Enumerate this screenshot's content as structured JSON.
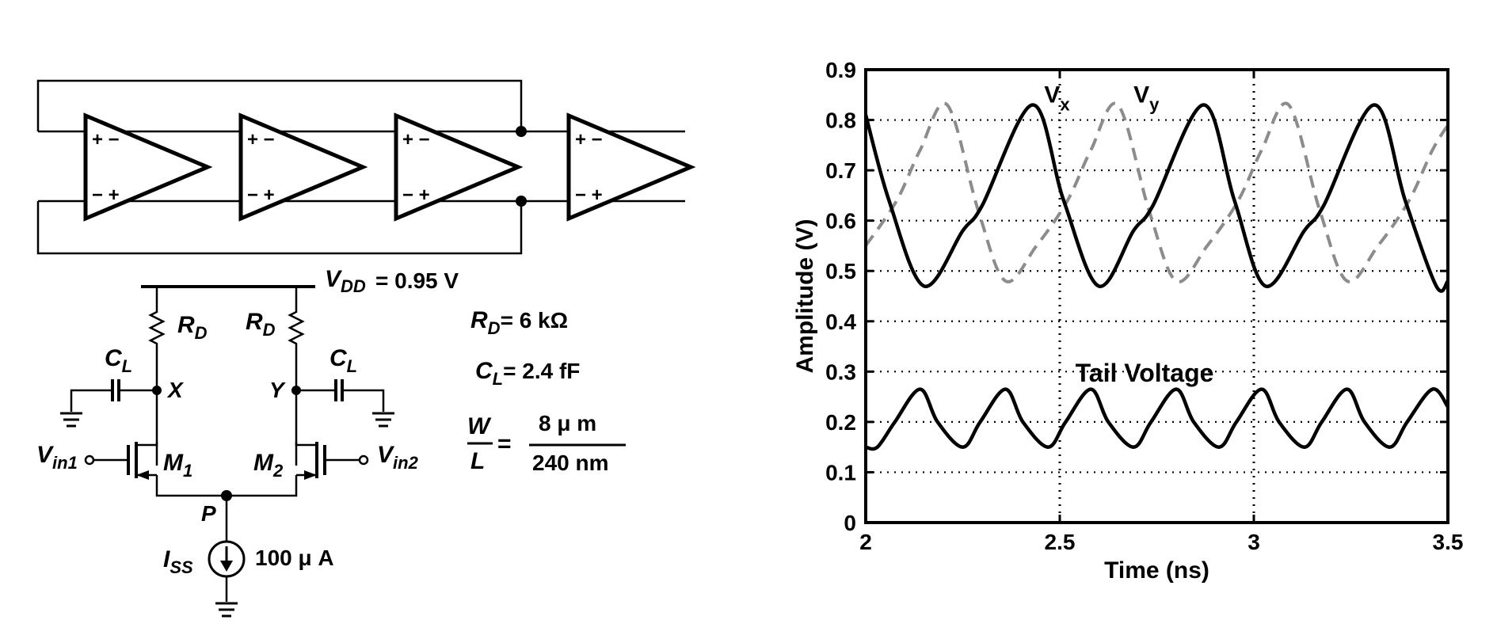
{
  "ring_oscillator": {
    "stage_count": 4,
    "stage_pin_top": "+ −",
    "stage_pin_bottom": "− +"
  },
  "diff_pair": {
    "vdd_symbol": "V",
    "vdd_sub": "DD",
    "vdd_value": "= 0.95 V",
    "rd_symbol": "R",
    "rd_sub": "D",
    "cl_symbol": "C",
    "cl_sub": "L",
    "node_x": "X",
    "node_y": "Y",
    "node_p": "P",
    "m1_symbol": "M",
    "m1_sub": "1",
    "m2_symbol": "M",
    "m2_sub": "2",
    "vin1_symbol": "V",
    "vin1_sub": "in1",
    "vin2_symbol": "V",
    "vin2_sub": "in2",
    "iss_symbol": "I",
    "iss_sub": "SS",
    "iss_value": "100 μ A"
  },
  "parameters": {
    "rd_value": "= 6 kΩ",
    "cl_value": "= 2.4 fF",
    "w_symbol": "W",
    "l_symbol": "L",
    "ratio_eq": "=",
    "w_value": "8 μ m",
    "l_value": "240 nm"
  },
  "chart_data": {
    "type": "line",
    "title": "",
    "xlabel": "Time (ns)",
    "ylabel": "Amplitude (V)",
    "xlim": [
      2,
      3.5
    ],
    "ylim": [
      0,
      0.9
    ],
    "xticks": [
      2,
      2.5,
      3,
      3.5
    ],
    "xtick_labels": [
      "2",
      "2.5",
      "3",
      "3.5"
    ],
    "yticks": [
      0,
      0.1,
      0.2,
      0.3,
      0.4,
      0.5,
      0.6,
      0.7,
      0.8,
      0.9
    ],
    "ytick_labels": [
      "0",
      "0.1",
      "0.2",
      "0.3",
      "0.4",
      "0.5",
      "0.6",
      "0.7",
      "0.8",
      "0.9"
    ],
    "grid": "dotted",
    "annotations": [
      {
        "main": "V",
        "sub": "x"
      },
      {
        "main": "V",
        "sub": "y"
      },
      {
        "main": "Tail Voltage",
        "sub": ""
      }
    ],
    "series": [
      {
        "name": "Vx",
        "color": "#000000",
        "dash": "solid",
        "x": [
          2.0,
          2.06,
          2.15,
          2.25,
          2.3,
          2.43,
          2.51,
          2.6,
          2.69,
          2.74,
          2.87,
          2.95,
          3.03,
          3.13,
          3.18,
          3.31,
          3.39,
          3.47,
          3.5
        ],
        "y": [
          0.81,
          0.64,
          0.47,
          0.58,
          0.63,
          0.83,
          0.64,
          0.47,
          0.58,
          0.63,
          0.83,
          0.64,
          0.47,
          0.58,
          0.63,
          0.83,
          0.64,
          0.47,
          0.48
        ]
      },
      {
        "name": "Vy",
        "color": "#8c8c8c",
        "dash": "dashed",
        "x": [
          2.0,
          2.08,
          2.14,
          2.21,
          2.29,
          2.36,
          2.44,
          2.52,
          2.58,
          2.65,
          2.73,
          2.8,
          2.88,
          2.96,
          3.02,
          3.09,
          3.17,
          3.24,
          3.32,
          3.4,
          3.46,
          3.5
        ],
        "y": [
          0.55,
          0.64,
          0.74,
          0.83,
          0.62,
          0.48,
          0.55,
          0.64,
          0.74,
          0.83,
          0.62,
          0.48,
          0.55,
          0.64,
          0.74,
          0.83,
          0.62,
          0.48,
          0.55,
          0.64,
          0.74,
          0.79
        ]
      },
      {
        "name": "Tail Voltage",
        "color": "#000000",
        "dash": "solid",
        "x": [
          2.0,
          2.03,
          2.075,
          2.14,
          2.185,
          2.25,
          2.295,
          2.36,
          2.405,
          2.47,
          2.515,
          2.58,
          2.625,
          2.69,
          2.735,
          2.8,
          2.845,
          2.91,
          2.955,
          3.02,
          3.065,
          3.13,
          3.175,
          3.24,
          3.285,
          3.35,
          3.395,
          3.46,
          3.5
        ],
        "y": [
          0.15,
          0.15,
          0.2,
          0.265,
          0.2,
          0.15,
          0.2,
          0.265,
          0.2,
          0.15,
          0.2,
          0.265,
          0.2,
          0.15,
          0.2,
          0.265,
          0.2,
          0.15,
          0.2,
          0.265,
          0.2,
          0.15,
          0.2,
          0.265,
          0.2,
          0.15,
          0.2,
          0.265,
          0.23
        ]
      }
    ]
  }
}
